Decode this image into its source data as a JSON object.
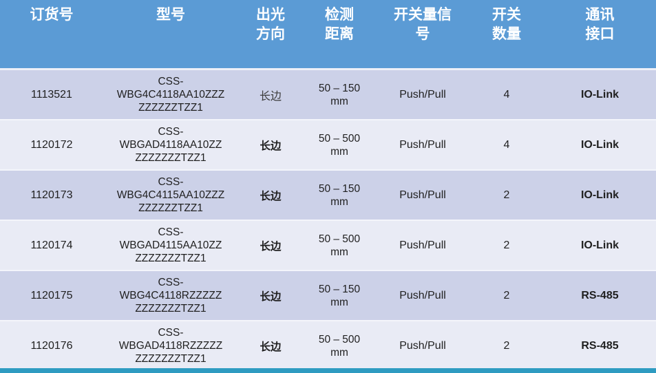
{
  "colors": {
    "header_bg": "#5b9bd5",
    "header_text": "#ffffff",
    "row_odd_bg": "#ccd1e8",
    "row_even_bg": "#e9ebf5",
    "body_text": "#1f1f1f",
    "bottom_bar": "#2e9bc1"
  },
  "table": {
    "headers": [
      {
        "line1": "订货号",
        "line2": ""
      },
      {
        "line1": "型号",
        "line2": ""
      },
      {
        "line1": "出光",
        "line2": "方向"
      },
      {
        "line1": "检测",
        "line2": "距离"
      },
      {
        "line1": "开关量信",
        "line2": "号"
      },
      {
        "line1": "开关",
        "line2": "数量"
      },
      {
        "line1": "通讯",
        "line2": "接口"
      }
    ],
    "rows": [
      {
        "order_no": "1113521",
        "model_lines": [
          "CSS-",
          "WBG4C4118AA10ZZZ",
          "ZZZZZZTZZ1"
        ],
        "direction": "长边",
        "distance_lines": [
          "50 – 150",
          "mm"
        ],
        "signal": "Push/Pull",
        "switch_count": "4",
        "interface": "IO-Link"
      },
      {
        "order_no": "1120172",
        "model_lines": [
          "CSS-",
          "WBGAD4118AA10ZZ",
          "ZZZZZZZTZZ1"
        ],
        "direction": "长边",
        "distance_lines": [
          "50 – 500",
          "mm"
        ],
        "signal": "Push/Pull",
        "switch_count": "4",
        "interface": "IO-Link"
      },
      {
        "order_no": "1120173",
        "model_lines": [
          "CSS-",
          "WBG4C4115AA10ZZZ",
          "ZZZZZZTZZ1"
        ],
        "direction": "长边",
        "distance_lines": [
          "50 – 150",
          "mm"
        ],
        "signal": "Push/Pull",
        "switch_count": "2",
        "interface": "IO-Link"
      },
      {
        "order_no": "1120174",
        "model_lines": [
          "CSS-",
          "WBGAD4115AA10ZZ",
          "ZZZZZZZTZZ1"
        ],
        "direction": "长边",
        "distance_lines": [
          "50 – 500",
          "mm"
        ],
        "signal": "Push/Pull",
        "switch_count": "2",
        "interface": "IO-Link"
      },
      {
        "order_no": "1120175",
        "model_lines": [
          "CSS-",
          "WBG4C4118RZZZZZ",
          "ZZZZZZZTZZ1"
        ],
        "direction": "长边",
        "distance_lines": [
          "50 – 150",
          "mm"
        ],
        "signal": "Push/Pull",
        "switch_count": "2",
        "interface": "RS-485"
      },
      {
        "order_no": "1120176",
        "model_lines": [
          "CSS-",
          "WBGAD4118RZZZZZ",
          "ZZZZZZZTZZ1"
        ],
        "direction": "长边",
        "distance_lines": [
          "50 – 500",
          "mm"
        ],
        "signal": "Push/Pull",
        "switch_count": "2",
        "interface": "RS-485"
      }
    ]
  }
}
